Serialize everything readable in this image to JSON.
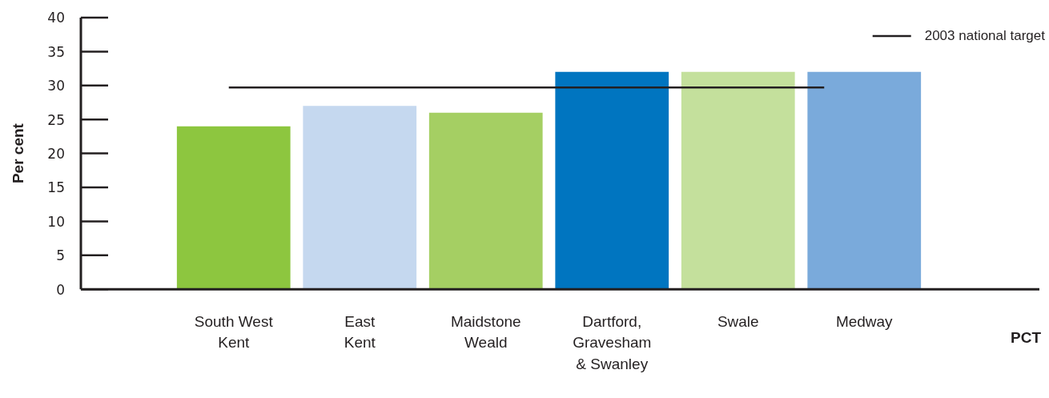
{
  "chart_data": {
    "type": "bar",
    "annotations": [
      "PCT"
    ],
    "ylabel": "Per cent",
    "categories": [
      "South West\nKent",
      "East\nKent",
      "Maidstone\nWeald",
      "Dartford,\nGravesham\n& Swanley",
      "Swale",
      "Medway"
    ],
    "values": [
      24,
      27,
      26,
      32,
      32,
      32
    ],
    "colors": [
      "#8dc63f",
      "#c5d8ef",
      "#a5cf63",
      "#0075c0",
      "#c4e09c",
      "#7aaadb"
    ],
    "ylim": [
      0,
      40
    ],
    "yticks": [
      0,
      5,
      10,
      15,
      20,
      25,
      30,
      35,
      40
    ],
    "grid": false,
    "legend": "top right",
    "ref_lines": [
      {
        "axis": "y",
        "value": 29.7,
        "label": "2003 national target",
        "color": "#231f20",
        "line_style": "solid"
      }
    ]
  }
}
